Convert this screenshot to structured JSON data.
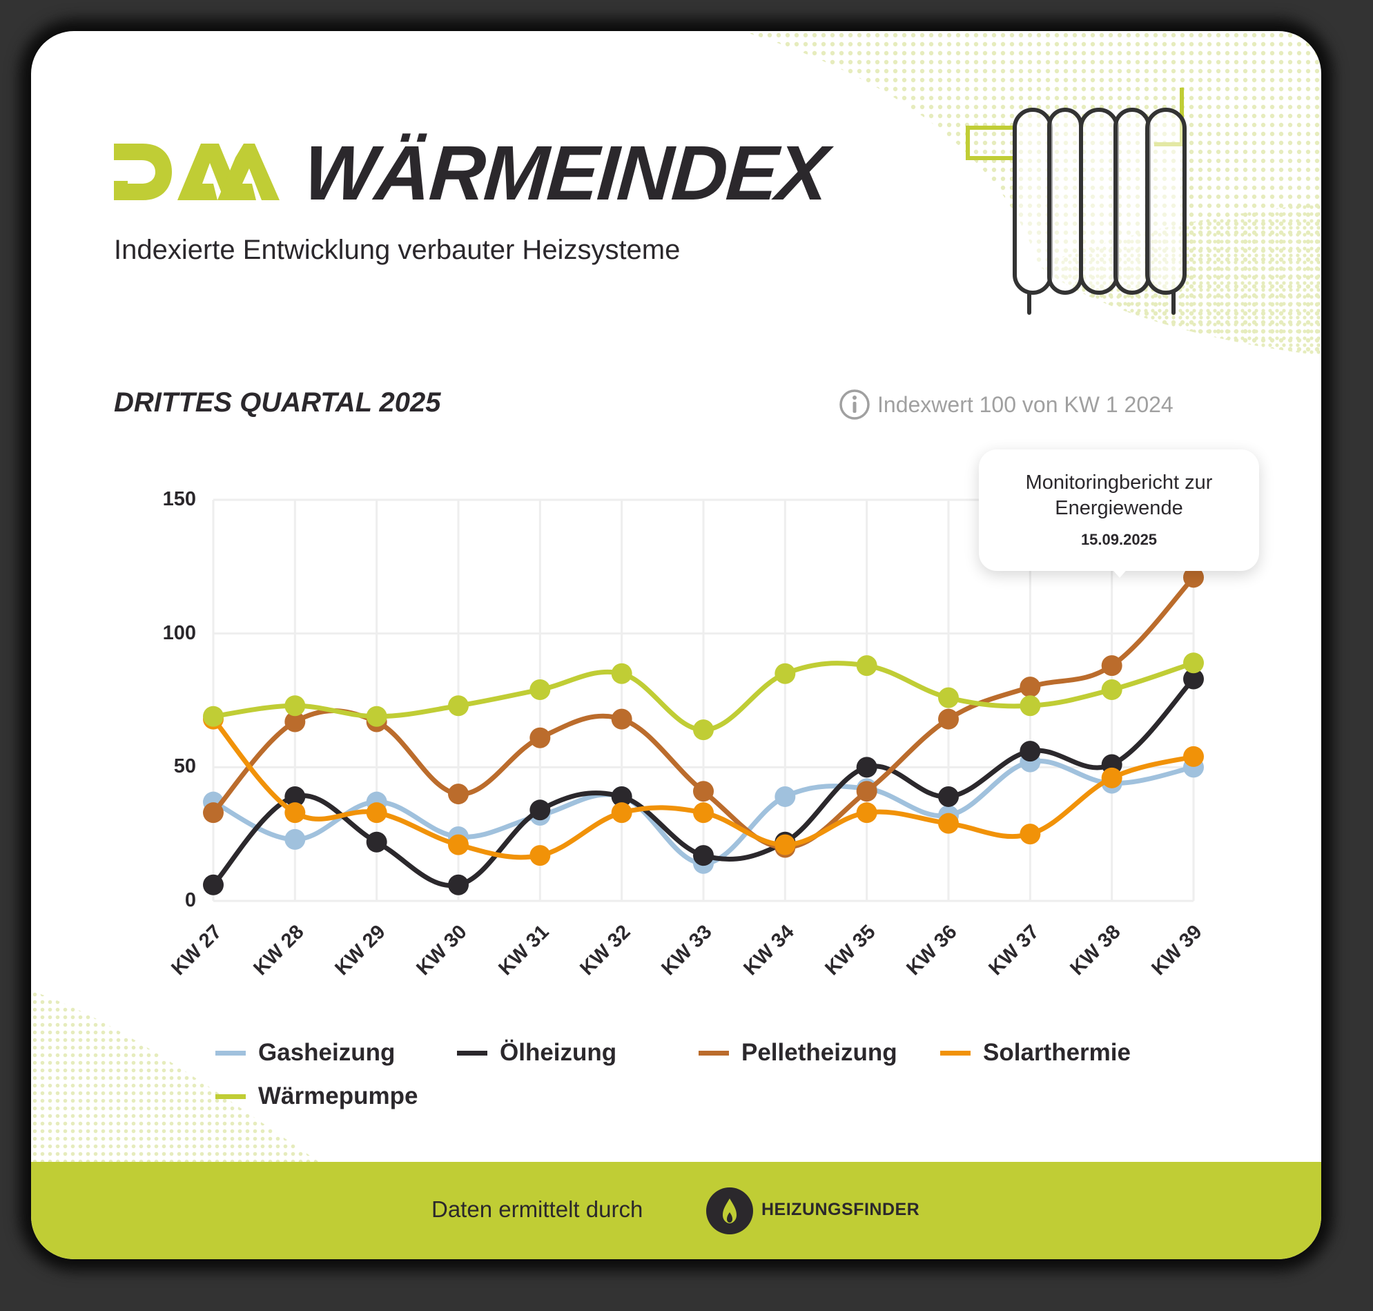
{
  "header": {
    "logo_text": "DAA",
    "title": "WÄRMEINDEX",
    "subtitle": "Indexierte Entwicklung verbauter Heizsysteme"
  },
  "section": {
    "title": "DRITTES QUARTAL 2025",
    "info_icon": "info-icon",
    "info_text": "Indexwert 100 von KW 1 2024"
  },
  "tooltip": {
    "line1": "Monitoringbericht zur",
    "line2": "Energiewende",
    "date": "15.09.2025",
    "anchor_category": "KW 38"
  },
  "footer": {
    "text": "Daten ermittelt durch",
    "brand": "HEIZUNGSFINDER",
    "brand_icon": "flame-icon"
  },
  "colors": {
    "accent_green": "#c0cd35",
    "text_dark": "#2b282c",
    "grid": "#eeeeee"
  },
  "chart_data": {
    "type": "line",
    "title": "DRITTES QUARTAL 2025",
    "subtitle": "Indexwert 100 von KW 1 2024",
    "xlabel": "",
    "ylabel": "",
    "ylim": [
      0,
      150
    ],
    "yticks": [
      0,
      50,
      100,
      150
    ],
    "grid": true,
    "smooth": true,
    "legend_position": "bottom",
    "categories": [
      "KW 27",
      "KW 28",
      "KW 29",
      "KW 30",
      "KW 31",
      "KW 32",
      "KW 33",
      "KW 34",
      "KW 35",
      "KW 36",
      "KW 37",
      "KW 38",
      "KW 39"
    ],
    "series": [
      {
        "name": "Gasheizung",
        "color": "#a0c1dd",
        "values": [
          37,
          23,
          37,
          24,
          32,
          39,
          14,
          39,
          42,
          32,
          52,
          44,
          50
        ]
      },
      {
        "name": "Ölheizung",
        "color": "#2b282c",
        "values": [
          6,
          39,
          22,
          6,
          34,
          39,
          17,
          22,
          50,
          39,
          56,
          51,
          83
        ]
      },
      {
        "name": "Pelletheizung",
        "color": "#bb6c2c",
        "values": [
          33,
          67,
          67,
          40,
          61,
          68,
          41,
          20,
          41,
          68,
          80,
          88,
          121
        ]
      },
      {
        "name": "Solarthermie",
        "color": "#f19208",
        "values": [
          68,
          33,
          33,
          21,
          17,
          33,
          33,
          21,
          33,
          29,
          25,
          46,
          54
        ]
      },
      {
        "name": "Wärmepumpe",
        "color": "#c0cd35",
        "values": [
          69,
          73,
          69,
          73,
          79,
          85,
          64,
          85,
          88,
          76,
          73,
          79,
          89
        ]
      }
    ],
    "annotations": [
      {
        "category": "KW 38",
        "text": "Monitoringbericht zur Energiewende",
        "date": "15.09.2025"
      }
    ]
  }
}
